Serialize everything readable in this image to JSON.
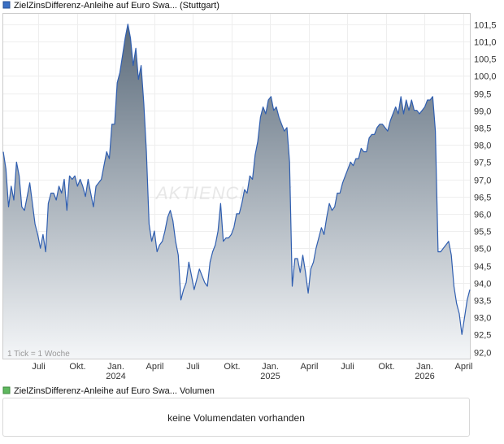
{
  "chart_data": {
    "type": "area",
    "title": "ZielZinsDifferenz-Anleihe auf Euro Swa... (Stuttgart)",
    "legend_color": "#3a6fc4",
    "line_color": "#2f5eb0",
    "fill_top_color": "#5b6b7b",
    "fill_bottom_color": "#f4f6f8",
    "grid": true,
    "ylim": [
      91.8,
      101.8
    ],
    "y_ticks": [
      "92,0",
      "92,5",
      "93,0",
      "93,5",
      "94,0",
      "94,5",
      "95,0",
      "95,5",
      "96,0",
      "96,5",
      "97,0",
      "97,5",
      "98,0",
      "98,5",
      "99,0",
      "99,5",
      "100,0",
      "100,5",
      "101,0",
      "101,5"
    ],
    "x_ticks": [
      {
        "label": "Juli",
        "year": ""
      },
      {
        "label": "Okt.",
        "year": ""
      },
      {
        "label": "Jan.",
        "year": "2024"
      },
      {
        "label": "April",
        "year": ""
      },
      {
        "label": "Juli",
        "year": ""
      },
      {
        "label": "Okt.",
        "year": ""
      },
      {
        "label": "Jan.",
        "year": "2025"
      },
      {
        "label": "April",
        "year": ""
      },
      {
        "label": "Juli",
        "year": ""
      },
      {
        "label": "Okt.",
        "year": ""
      },
      {
        "label": "Jan.",
        "year": "2026"
      },
      {
        "label": "April",
        "year": ""
      }
    ],
    "tick_note": "1 Tick = 1 Woche",
    "watermark": "AKTIENCHECK",
    "values": [
      97.8,
      97.3,
      96.2,
      96.8,
      96.4,
      97.5,
      97.1,
      96.2,
      96.1,
      96.5,
      96.9,
      96.3,
      95.7,
      95.4,
      95.0,
      95.4,
      94.9,
      96.3,
      96.6,
      96.6,
      96.4,
      96.8,
      96.6,
      97.0,
      96.1,
      97.1,
      97.0,
      97.1,
      96.8,
      97.0,
      96.8,
      96.5,
      97.0,
      96.6,
      96.2,
      96.8,
      96.9,
      97.0,
      97.4,
      97.8,
      97.6,
      98.6,
      98.6,
      99.8,
      100.1,
      100.6,
      101.1,
      101.5,
      101.1,
      100.3,
      100.8,
      99.9,
      100.3,
      99.2,
      97.8,
      95.7,
      95.2,
      95.5,
      94.9,
      95.1,
      95.2,
      95.5,
      95.9,
      96.1,
      95.8,
      95.2,
      94.8,
      93.5,
      93.8,
      94.0,
      94.6,
      94.2,
      93.8,
      94.1,
      94.4,
      94.2,
      94.0,
      93.9,
      94.6,
      94.9,
      95.1,
      95.5,
      96.3,
      95.2,
      95.3,
      95.3,
      95.4,
      95.6,
      96.0,
      96.0,
      96.3,
      96.7,
      96.6,
      97.1,
      97.0,
      97.7,
      98.1,
      98.8,
      99.1,
      98.9,
      99.3,
      99.4,
      99.0,
      99.1,
      98.8,
      98.6,
      98.4,
      98.5,
      97.5,
      93.9,
      94.7,
      94.7,
      94.3,
      94.8,
      94.3,
      93.7,
      94.4,
      94.6,
      95.0,
      95.3,
      95.6,
      95.4,
      95.9,
      96.3,
      96.1,
      96.2,
      96.6,
      96.6,
      96.9,
      97.1,
      97.3,
      97.5,
      97.4,
      97.6,
      97.6,
      97.9,
      97.8,
      97.8,
      98.2,
      98.3,
      98.3,
      98.5,
      98.6,
      98.6,
      98.5,
      98.4,
      98.7,
      98.9,
      99.1,
      98.9,
      99.4,
      98.9,
      99.3,
      99.0,
      99.3,
      99.0,
      99.0,
      98.9,
      99.0,
      99.1,
      99.3,
      99.3,
      99.4,
      98.4,
      94.9,
      94.9,
      95.0,
      95.1,
      95.2,
      94.8,
      93.9,
      93.4,
      93.1,
      92.5,
      93.0,
      93.5,
      93.8
    ]
  },
  "volume": {
    "title": "ZielZinsDifferenz-Anleihe auf Euro Swa... Volumen",
    "legend_color": "#5fb85f",
    "message": "keine Volumendaten vorhanden"
  }
}
